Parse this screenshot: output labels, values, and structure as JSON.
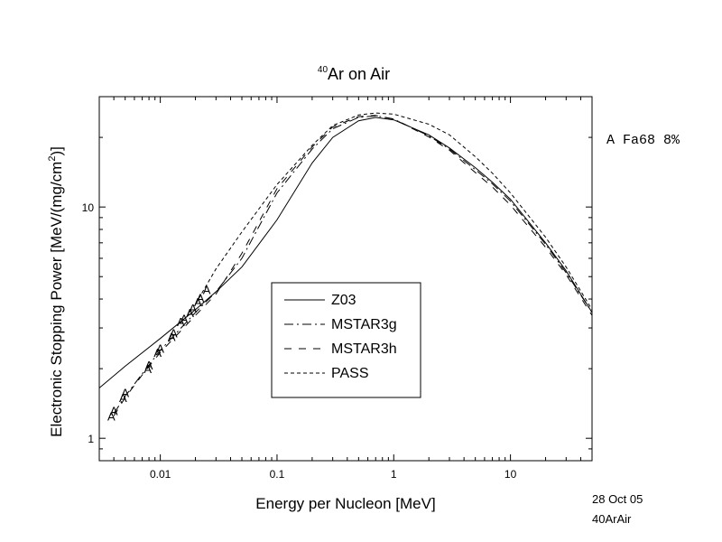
{
  "chart_data": {
    "type": "line",
    "title_sup": "40",
    "title_main": "Ar on Air",
    "xlabel": "Energy per Nucleon [MeV]",
    "ylabel_main": "Electronic Stopping Power [MeV/(mg/cm",
    "ylabel_sup": "2",
    "ylabel_end": ")]",
    "x_scale": "log",
    "y_scale": "log",
    "xlim": [
      0.003,
      50
    ],
    "ylim": [
      0.8,
      30
    ],
    "x_ticks": [
      {
        "value": 0.01,
        "label": "0.01"
      },
      {
        "value": 0.1,
        "label": "0.1"
      },
      {
        "value": 1,
        "label": "1"
      },
      {
        "value": 10,
        "label": "10"
      }
    ],
    "y_ticks": [
      {
        "value": 1,
        "label": "1"
      },
      {
        "value": 10,
        "label": "10"
      }
    ],
    "series": [
      {
        "name": "Z03",
        "style": "solid",
        "x": [
          0.003,
          0.005,
          0.01,
          0.02,
          0.03,
          0.05,
          0.1,
          0.2,
          0.3,
          0.5,
          0.7,
          1,
          2,
          3,
          5,
          7,
          10,
          20,
          30,
          50
        ],
        "y": [
          1.65,
          2.05,
          2.7,
          3.6,
          4.3,
          5.5,
          8.8,
          15.5,
          20.0,
          23.6,
          24.4,
          23.8,
          20.5,
          18.0,
          14.8,
          12.8,
          10.8,
          7.0,
          5.3,
          3.5
        ]
      },
      {
        "name": "MSTAR3g",
        "style": "dashdot",
        "x": [
          0.004,
          0.005,
          0.007,
          0.01,
          0.02,
          0.03,
          0.05,
          0.1,
          0.2,
          0.3,
          0.5,
          0.7,
          1,
          2,
          3,
          5,
          7,
          10,
          20,
          30,
          50
        ],
        "y": [
          1.28,
          1.52,
          1.9,
          2.4,
          3.5,
          4.3,
          6.0,
          11.5,
          17.8,
          21.8,
          24.4,
          24.8,
          24.0,
          20.3,
          17.8,
          14.5,
          12.6,
          10.6,
          6.9,
          5.2,
          3.5
        ]
      },
      {
        "name": "MSTAR3h",
        "style": "dash",
        "x": [
          0.004,
          0.005,
          0.007,
          0.01,
          0.02,
          0.03,
          0.05,
          0.1,
          0.2,
          0.3,
          0.5,
          0.7,
          1,
          2,
          3,
          5,
          7,
          10,
          20,
          30,
          50
        ],
        "y": [
          1.25,
          1.5,
          1.88,
          2.35,
          3.4,
          4.2,
          6.3,
          12.0,
          18.2,
          22.2,
          24.6,
          24.9,
          24.0,
          20.1,
          17.6,
          14.1,
          12.2,
          10.2,
          6.7,
          5.1,
          3.4
        ]
      },
      {
        "name": "PASS",
        "style": "shortdash",
        "x": [
          0.02,
          0.03,
          0.05,
          0.1,
          0.2,
          0.3,
          0.5,
          0.7,
          1,
          2,
          3,
          5,
          7,
          10,
          20,
          30,
          50
        ],
        "y": [
          3.8,
          5.4,
          7.8,
          12.5,
          18.5,
          22.5,
          25.0,
          25.5,
          25.2,
          22.8,
          20.5,
          16.5,
          14.0,
          11.5,
          7.4,
          5.5,
          3.6
        ]
      }
    ],
    "markers": {
      "symbol": "A",
      "x": [
        0.0038,
        0.004,
        0.0048,
        0.005,
        0.0078,
        0.008,
        0.0095,
        0.01,
        0.0125,
        0.013,
        0.015,
        0.016,
        0.018,
        0.019,
        0.021,
        0.022,
        0.025
      ],
      "y": [
        1.25,
        1.32,
        1.5,
        1.58,
        2.0,
        2.08,
        2.35,
        2.45,
        2.75,
        2.85,
        3.2,
        3.3,
        3.5,
        3.65,
        3.9,
        4.05,
        4.4
      ]
    },
    "legend": {
      "placement": "lower-center",
      "grid": false
    }
  },
  "annotations": {
    "right_label": "A Fa68 8%",
    "date": "28 Oct 05",
    "file": "40ArAir"
  }
}
